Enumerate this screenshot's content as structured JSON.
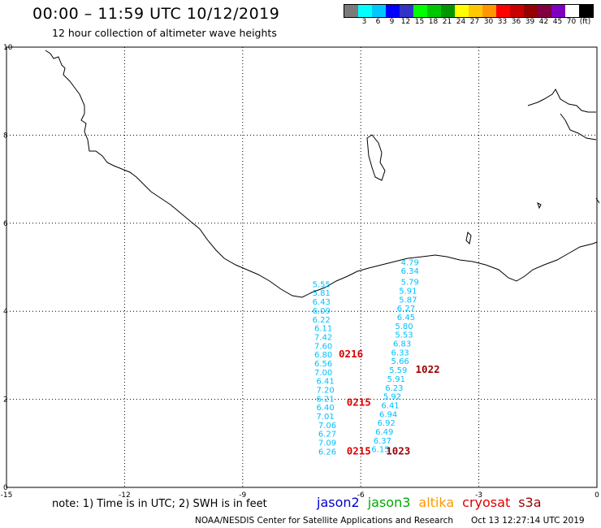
{
  "title": "00:00 – 11:59 UTC 10/12/2019",
  "subtitle": "12 hour collection of altimeter wave heights",
  "legend": {
    "unit": "(ft)",
    "colors": [
      "#7a7a7a",
      "#00ffff",
      "#00c8ff",
      "#0000ff",
      "#3232c8",
      "#00ff00",
      "#00c800",
      "#009600",
      "#ffff00",
      "#ffc800",
      "#ff9600",
      "#ff0000",
      "#c80000",
      "#960000",
      "#800040",
      "#8000c0",
      "#ffffff",
      "#000000"
    ],
    "labels": [
      "3",
      "6",
      "9",
      "12",
      "15",
      "18",
      "21",
      "24",
      "27",
      "30",
      "33",
      "36",
      "39",
      "42",
      "45",
      "70"
    ]
  },
  "axes": {
    "x_ticks": [
      "-15",
      "-12",
      "-9",
      "-6",
      "-3",
      "0"
    ],
    "y_ticks": [
      "0",
      "2",
      "4",
      "6",
      "8",
      "10"
    ],
    "xlim": [
      -15,
      0
    ],
    "ylim": [
      0,
      10
    ]
  },
  "note": "note: 1) Time is in UTC; 2) SWH is in feet",
  "satellites": [
    {
      "name": "jason2",
      "color": "#0000cc"
    },
    {
      "name": "jason3",
      "color": "#00aa00"
    },
    {
      "name": "altika",
      "color": "#ff9900"
    },
    {
      "name": "cryosat",
      "color": "#dd0000"
    },
    {
      "name": "s3a",
      "color": "#990000"
    }
  ],
  "credit": "NOAA/NESDIS Center for Satellite Applications and Research",
  "timestamp": "Oct 13 12:27:14 UTC 2019",
  "chart_data": {
    "type": "scatter",
    "tracks": [
      {
        "name": "track-west",
        "color": "#00bfff",
        "points": [
          {
            "lon": -7.0,
            "lat": 4.55,
            "swh": "5.55"
          },
          {
            "lon": -7.0,
            "lat": 4.35,
            "swh": "5.81"
          },
          {
            "lon": -7.0,
            "lat": 4.15,
            "swh": "6.43"
          },
          {
            "lon": -7.0,
            "lat": 3.95,
            "swh": "6.09"
          },
          {
            "lon": -7.0,
            "lat": 3.75,
            "swh": "6.22"
          },
          {
            "lon": -6.95,
            "lat": 3.55,
            "swh": "6.11"
          },
          {
            "lon": -6.95,
            "lat": 3.35,
            "swh": "7.42"
          },
          {
            "lon": -6.95,
            "lat": 3.15,
            "swh": "7.60"
          },
          {
            "lon": -6.95,
            "lat": 2.95,
            "swh": "6.80"
          },
          {
            "lon": -6.95,
            "lat": 2.75,
            "swh": "6.56"
          },
          {
            "lon": -6.95,
            "lat": 2.55,
            "swh": "7.00"
          },
          {
            "lon": -6.9,
            "lat": 2.35,
            "swh": "6.41"
          },
          {
            "lon": -6.9,
            "lat": 2.15,
            "swh": "7.20"
          },
          {
            "lon": -6.9,
            "lat": 1.95,
            "swh": "6.21"
          },
          {
            "lon": -6.9,
            "lat": 1.75,
            "swh": "6.40"
          },
          {
            "lon": -6.9,
            "lat": 1.55,
            "swh": "7.01"
          },
          {
            "lon": -6.85,
            "lat": 1.35,
            "swh": "7.06"
          },
          {
            "lon": -6.85,
            "lat": 1.15,
            "swh": "6.27"
          },
          {
            "lon": -6.85,
            "lat": 0.95,
            "swh": "7.09"
          },
          {
            "lon": -6.85,
            "lat": 0.75,
            "swh": "6.26"
          }
        ]
      },
      {
        "name": "track-east",
        "color": "#00bfff",
        "points": [
          {
            "lon": -4.75,
            "lat": 5.05,
            "swh": "4.79"
          },
          {
            "lon": -4.75,
            "lat": 4.85,
            "swh": "6.34"
          },
          {
            "lon": -4.75,
            "lat": 4.6,
            "swh": "5.79"
          },
          {
            "lon": -4.8,
            "lat": 4.4,
            "swh": "5.91"
          },
          {
            "lon": -4.8,
            "lat": 4.2,
            "swh": "5.87"
          },
          {
            "lon": -4.85,
            "lat": 4.0,
            "swh": "6.27"
          },
          {
            "lon": -4.85,
            "lat": 3.8,
            "swh": "6.45"
          },
          {
            "lon": -4.9,
            "lat": 3.6,
            "swh": "5.80"
          },
          {
            "lon": -4.9,
            "lat": 3.4,
            "swh": "5.53"
          },
          {
            "lon": -4.95,
            "lat": 3.2,
            "swh": "6.83"
          },
          {
            "lon": -5.0,
            "lat": 3.0,
            "swh": "6.33"
          },
          {
            "lon": -5.0,
            "lat": 2.8,
            "swh": "5.66"
          },
          {
            "lon": -5.05,
            "lat": 2.6,
            "swh": "5.59"
          },
          {
            "lon": -5.1,
            "lat": 2.4,
            "swh": "5.91"
          },
          {
            "lon": -5.15,
            "lat": 2.2,
            "swh": "6.23"
          },
          {
            "lon": -5.2,
            "lat": 2.0,
            "swh": "5.92"
          },
          {
            "lon": -5.25,
            "lat": 1.8,
            "swh": "6.41"
          },
          {
            "lon": -5.3,
            "lat": 1.6,
            "swh": "6.94"
          },
          {
            "lon": -5.35,
            "lat": 1.4,
            "swh": "6.92"
          },
          {
            "lon": -5.4,
            "lat": 1.2,
            "swh": "6.49"
          },
          {
            "lon": -5.45,
            "lat": 1.0,
            "swh": "6.37"
          },
          {
            "lon": -5.5,
            "lat": 0.8,
            "swh": "6.15"
          }
        ]
      }
    ],
    "pass_times": [
      {
        "text": "0216",
        "lon": -6.25,
        "lat": 2.95,
        "color": "#dd0000"
      },
      {
        "text": "1022",
        "lon": -4.3,
        "lat": 2.6,
        "color": "#990000"
      },
      {
        "text": "0215",
        "lon": -6.05,
        "lat": 1.85,
        "color": "#dd0000"
      },
      {
        "text": "0215",
        "lon": -6.05,
        "lat": 0.75,
        "color": "#dd0000"
      },
      {
        "text": "1023",
        "lon": -5.05,
        "lat": 0.75,
        "color": "#990000"
      }
    ]
  }
}
